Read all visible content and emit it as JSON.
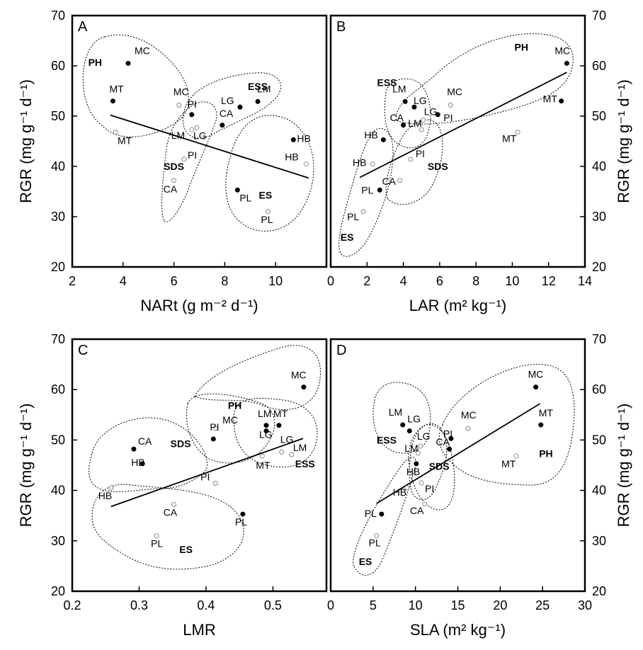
{
  "chart_data": [
    {
      "type": "scatter",
      "panel": "A",
      "xlabel": "NARt (g m⁻² d⁻¹)",
      "ylabel": "RGR (mg g⁻¹ d⁻¹)",
      "xlim": [
        2,
        12
      ],
      "ylim": [
        20,
        70
      ],
      "xticks": [
        2,
        4,
        6,
        8,
        10
      ],
      "yticks": [
        20,
        30,
        40,
        50,
        60,
        70
      ],
      "points": [
        {
          "label": "MC",
          "x": 4.2,
          "y": 60.5,
          "filled": true
        },
        {
          "label": "MT",
          "x": 3.6,
          "y": 53,
          "filled": true
        },
        {
          "label": "MT",
          "x": 3.7,
          "y": 46.8,
          "filled": false
        },
        {
          "label": "MC",
          "x": 6.2,
          "y": 52.2,
          "filled": false
        },
        {
          "label": "PI",
          "x": 6.7,
          "y": 50.3,
          "filled": true
        },
        {
          "label": "LG",
          "x": 6.9,
          "y": 47.7,
          "filled": false
        },
        {
          "label": "LM",
          "x": 6.7,
          "y": 47.3,
          "filled": false
        },
        {
          "label": "CA",
          "x": 7.9,
          "y": 48.2,
          "filled": true
        },
        {
          "label": "LG",
          "x": 8.6,
          "y": 51.8,
          "filled": true
        },
        {
          "label": "LM",
          "x": 9.3,
          "y": 52.9,
          "filled": true
        },
        {
          "label": "PI",
          "x": 6.4,
          "y": 41.4,
          "filled": false
        },
        {
          "label": "CA",
          "x": 6.0,
          "y": 37.2,
          "filled": false
        },
        {
          "label": "HB",
          "x": 10.7,
          "y": 45.3,
          "filled": true
        },
        {
          "label": "HB",
          "x": 11.2,
          "y": 40.5,
          "filled": false
        },
        {
          "label": "PL",
          "x": 8.5,
          "y": 35.3,
          "filled": true
        },
        {
          "label": "PL",
          "x": 9.7,
          "y": 31.0,
          "filled": false
        }
      ],
      "groups": [
        {
          "label": "PH",
          "x": 2.9,
          "y": 60
        },
        {
          "label": "ESS",
          "x": 9.3,
          "y": 55.2
        },
        {
          "label": "SDS",
          "x": 6.0,
          "y": 39.3
        },
        {
          "label": "ES",
          "x": 9.6,
          "y": 33.6
        }
      ],
      "line": {
        "x": [
          3.5,
          11.3
        ],
        "y": [
          50.2,
          37.7
        ]
      },
      "panel_letter": "A"
    },
    {
      "type": "scatter",
      "panel": "B",
      "xlabel": "LAR (m² kg⁻¹)",
      "ylabel": "RGR (mg g⁻¹ d⁻¹)",
      "xlim": [
        0,
        14
      ],
      "ylim": [
        20,
        70
      ],
      "xticks": [
        0,
        2,
        4,
        6,
        8,
        10,
        12,
        14
      ],
      "yticks": [
        20,
        30,
        40,
        50,
        60,
        70
      ],
      "points": [
        {
          "label": "MC",
          "x": 13.0,
          "y": 60.5,
          "filled": true
        },
        {
          "label": "MT",
          "x": 12.7,
          "y": 53,
          "filled": true
        },
        {
          "label": "MT",
          "x": 10.3,
          "y": 46.8,
          "filled": false
        },
        {
          "label": "MC",
          "x": 6.6,
          "y": 52.2,
          "filled": false
        },
        {
          "label": "LM",
          "x": 4.1,
          "y": 52.9,
          "filled": true
        },
        {
          "label": "LG",
          "x": 4.6,
          "y": 51.8,
          "filled": true
        },
        {
          "label": "PI",
          "x": 5.9,
          "y": 50.3,
          "filled": true
        },
        {
          "label": "LG",
          "x": 5.1,
          "y": 49.2,
          "filled": false
        },
        {
          "label": "CA",
          "x": 4.0,
          "y": 48.2,
          "filled": true
        },
        {
          "label": "LM",
          "x": 5.0,
          "y": 47.3,
          "filled": false
        },
        {
          "label": "HB",
          "x": 2.9,
          "y": 45.3,
          "filled": true
        },
        {
          "label": "PI",
          "x": 4.4,
          "y": 41.4,
          "filled": false
        },
        {
          "label": "HB",
          "x": 2.3,
          "y": 40.5,
          "filled": false
        },
        {
          "label": "CA",
          "x": 3.8,
          "y": 37.2,
          "filled": false
        },
        {
          "label": "PL",
          "x": 2.7,
          "y": 35.3,
          "filled": true
        },
        {
          "label": "PL",
          "x": 1.8,
          "y": 31.0,
          "filled": false
        }
      ],
      "groups": [
        {
          "label": "PH",
          "x": 10.5,
          "y": 63
        },
        {
          "label": "ESS",
          "x": 3.1,
          "y": 56
        },
        {
          "label": "SDS",
          "x": 5.9,
          "y": 39.3
        },
        {
          "label": "ES",
          "x": 0.9,
          "y": 25.2
        }
      ],
      "line": {
        "x": [
          1.6,
          13.0
        ],
        "y": [
          37.8,
          58.7
        ]
      },
      "panel_letter": "B"
    },
    {
      "type": "scatter",
      "panel": "C",
      "xlabel": "LMR",
      "ylabel": "RGR (mg g⁻¹ d⁻¹)",
      "xlim": [
        0.2,
        0.58
      ],
      "ylim": [
        20,
        70
      ],
      "xticks": [
        0.2,
        0.3,
        0.4,
        0.5
      ],
      "yticks": [
        20,
        30,
        40,
        50,
        60,
        70
      ],
      "points": [
        {
          "label": "MC",
          "x": 0.546,
          "y": 60.5,
          "filled": true
        },
        {
          "label": "LM",
          "x": 0.49,
          "y": 52.9,
          "filled": true
        },
        {
          "label": "MT",
          "x": 0.509,
          "y": 52.9,
          "filled": true
        },
        {
          "label": "LG",
          "x": 0.49,
          "y": 51.8,
          "filled": true
        },
        {
          "label": "MC",
          "x": 0.414,
          "y": 52.3,
          "filled": false
        },
        {
          "label": "PI",
          "x": 0.411,
          "y": 50.2,
          "filled": true
        },
        {
          "label": "CA",
          "x": 0.292,
          "y": 48.2,
          "filled": true
        },
        {
          "label": "LG",
          "x": 0.513,
          "y": 47.6,
          "filled": false
        },
        {
          "label": "LM",
          "x": 0.528,
          "y": 47.1,
          "filled": false
        },
        {
          "label": "MT",
          "x": 0.484,
          "y": 46.8,
          "filled": false
        },
        {
          "label": "HB",
          "x": 0.305,
          "y": 45.3,
          "filled": true
        },
        {
          "label": "PI",
          "x": 0.414,
          "y": 41.4,
          "filled": false
        },
        {
          "label": "HB",
          "x": 0.258,
          "y": 40.5,
          "filled": false
        },
        {
          "label": "CA",
          "x": 0.352,
          "y": 37.2,
          "filled": false
        },
        {
          "label": "PL",
          "x": 0.455,
          "y": 35.3,
          "filled": true
        },
        {
          "label": "PL",
          "x": 0.326,
          "y": 31.0,
          "filled": false
        }
      ],
      "groups": [
        {
          "label": "PH",
          "x": 0.443,
          "y": 56.2
        },
        {
          "label": "SDS",
          "x": 0.362,
          "y": 48.6
        },
        {
          "label": "ESS",
          "x": 0.548,
          "y": 44.6
        },
        {
          "label": "ES",
          "x": 0.37,
          "y": 27.6
        }
      ],
      "line": {
        "x": [
          0.258,
          0.545
        ],
        "y": [
          36.8,
          50.3
        ]
      },
      "panel_letter": "C"
    },
    {
      "type": "scatter",
      "panel": "D",
      "xlabel": "SLA  (m² kg⁻¹)",
      "ylabel": "RGR (mg g⁻¹ d⁻¹)",
      "xlim": [
        0,
        30
      ],
      "ylim": [
        20,
        70
      ],
      "xticks": [
        0,
        5,
        10,
        15,
        20,
        25,
        30
      ],
      "yticks": [
        20,
        30,
        40,
        50,
        60,
        70
      ],
      "points": [
        {
          "label": "MC",
          "x": 24.2,
          "y": 60.5,
          "filled": true
        },
        {
          "label": "MT",
          "x": 24.8,
          "y": 53,
          "filled": true
        },
        {
          "label": "MC",
          "x": 16.2,
          "y": 52.3,
          "filled": false
        },
        {
          "label": "MT",
          "x": 21.9,
          "y": 46.8,
          "filled": false
        },
        {
          "label": "LM",
          "x": 8.5,
          "y": 53,
          "filled": true
        },
        {
          "label": "LG",
          "x": 9.3,
          "y": 51.8,
          "filled": true
        },
        {
          "label": "PI",
          "x": 14.2,
          "y": 50.3,
          "filled": true
        },
        {
          "label": "LG",
          "x": 10.6,
          "y": 48.8,
          "filled": false
        },
        {
          "label": "CA",
          "x": 14.0,
          "y": 48.2,
          "filled": true
        },
        {
          "label": "LM",
          "x": 10.3,
          "y": 47.4,
          "filled": false
        },
        {
          "label": "HB",
          "x": 10.1,
          "y": 45.3,
          "filled": true
        },
        {
          "label": "PI",
          "x": 10.7,
          "y": 41.5,
          "filled": false
        },
        {
          "label": "HB",
          "x": 9.0,
          "y": 40.5,
          "filled": false
        },
        {
          "label": "CA",
          "x": 11.1,
          "y": 37.3,
          "filled": false
        },
        {
          "label": "PL",
          "x": 6.0,
          "y": 35.3,
          "filled": true
        },
        {
          "label": "PL",
          "x": 5.4,
          "y": 31.0,
          "filled": false
        }
      ],
      "groups": [
        {
          "label": "ESS",
          "x": 6.6,
          "y": 49.3
        },
        {
          "label": "SDS",
          "x": 12.8,
          "y": 44.1
        },
        {
          "label": "PH",
          "x": 25.4,
          "y": 46.6
        },
        {
          "label": "ES",
          "x": 4.1,
          "y": 25.2
        }
      ],
      "line": {
        "x": [
          5.4,
          24.7
        ],
        "y": [
          37.4,
          57.2
        ]
      },
      "panel_letter": "D"
    }
  ]
}
